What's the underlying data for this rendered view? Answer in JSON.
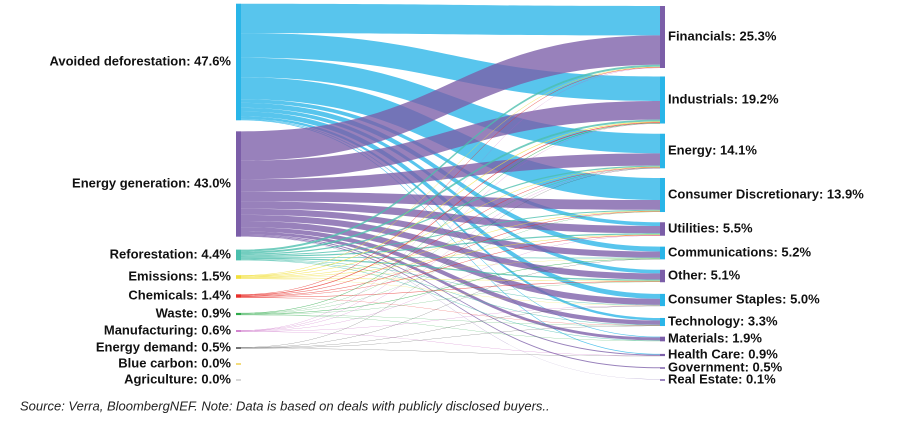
{
  "chart_data": {
    "type": "sankey",
    "sources": [
      {
        "label": "Avoided deforestation: 47.6%",
        "value": 47.6,
        "color": "#29b5e8"
      },
      {
        "label": "Energy generation: 43.0%",
        "value": 43.0,
        "color": "#7b5ea8"
      },
      {
        "label": "Reforestation: 4.4%",
        "value": 4.4,
        "color": "#4bbfad"
      },
      {
        "label": "Emissions: 1.5%",
        "value": 1.5,
        "color": "#f2e03c"
      },
      {
        "label": "Chemicals: 1.4%",
        "value": 1.4,
        "color": "#e8302a"
      },
      {
        "label": "Waste: 0.9%",
        "value": 0.9,
        "color": "#2eaa4a"
      },
      {
        "label": "Manufacturing: 0.6%",
        "value": 0.6,
        "color": "#c45bbf"
      },
      {
        "label": "Energy demand: 0.5%",
        "value": 0.5,
        "color": "#444444"
      },
      {
        "label": "Blue carbon: 0.0%",
        "value": 0.0,
        "color": "#f0d050"
      },
      {
        "label": "Agriculture: 0.0%",
        "value": 0.0,
        "color": "#cccccc"
      }
    ],
    "targets": [
      {
        "label": "Financials: 25.3%",
        "value": 25.3,
        "color": "#7b5ea8"
      },
      {
        "label": "Industrials: 19.2%",
        "value": 19.2,
        "color": "#29b5e8"
      },
      {
        "label": "Energy: 14.1%",
        "value": 14.1,
        "color": "#29b5e8"
      },
      {
        "label": "Consumer Discretionary: 13.9%",
        "value": 13.9,
        "color": "#29b5e8"
      },
      {
        "label": "Utilities: 5.5%",
        "value": 5.5,
        "color": "#7b5ea8"
      },
      {
        "label": "Communications: 5.2%",
        "value": 5.2,
        "color": "#29b5e8"
      },
      {
        "label": "Other: 5.1%",
        "value": 5.1,
        "color": "#7b5ea8"
      },
      {
        "label": "Consumer Staples: 5.0%",
        "value": 5.0,
        "color": "#29b5e8"
      },
      {
        "label": "Technology: 3.3%",
        "value": 3.3,
        "color": "#29b5e8"
      },
      {
        "label": "Materials: 1.9%",
        "value": 1.9,
        "color": "#7b5ea8"
      },
      {
        "label": "Health Care: 0.9%",
        "value": 0.9,
        "color": "#7b5ea8"
      },
      {
        "label": "Government: 0.5%",
        "value": 0.5,
        "color": "#7b5ea8"
      },
      {
        "label": "Real Estate: 0.1%",
        "value": 0.1,
        "color": "#7b5ea8"
      }
    ],
    "links": [
      {
        "source": 0,
        "target": 0,
        "value": 12
      },
      {
        "source": 0,
        "target": 1,
        "value": 10
      },
      {
        "source": 0,
        "target": 2,
        "value": 8
      },
      {
        "source": 0,
        "target": 3,
        "value": 9
      },
      {
        "source": 0,
        "target": 4,
        "value": 1.5
      },
      {
        "source": 0,
        "target": 5,
        "value": 2
      },
      {
        "source": 0,
        "target": 6,
        "value": 1.5
      },
      {
        "source": 0,
        "target": 7,
        "value": 2
      },
      {
        "source": 0,
        "target": 8,
        "value": 1
      },
      {
        "source": 0,
        "target": 9,
        "value": 0.3
      },
      {
        "source": 0,
        "target": 10,
        "value": 0.3
      },
      {
        "source": 1,
        "target": 0,
        "value": 12
      },
      {
        "source": 1,
        "target": 1,
        "value": 7.6
      },
      {
        "source": 1,
        "target": 2,
        "value": 5
      },
      {
        "source": 1,
        "target": 3,
        "value": 4
      },
      {
        "source": 1,
        "target": 4,
        "value": 3
      },
      {
        "source": 1,
        "target": 5,
        "value": 2.5
      },
      {
        "source": 1,
        "target": 6,
        "value": 2.5
      },
      {
        "source": 1,
        "target": 7,
        "value": 2.5
      },
      {
        "source": 1,
        "target": 8,
        "value": 1.8
      },
      {
        "source": 1,
        "target": 9,
        "value": 1.2
      },
      {
        "source": 1,
        "target": 10,
        "value": 0.4
      },
      {
        "source": 1,
        "target": 11,
        "value": 0.4
      },
      {
        "source": 1,
        "target": 12,
        "value": 0.1
      },
      {
        "source": 2,
        "target": 0,
        "value": 0.8
      },
      {
        "source": 2,
        "target": 1,
        "value": 0.8
      },
      {
        "source": 2,
        "target": 2,
        "value": 0.5
      },
      {
        "source": 2,
        "target": 3,
        "value": 0.4
      },
      {
        "source": 2,
        "target": 4,
        "value": 0.5
      },
      {
        "source": 2,
        "target": 5,
        "value": 0.3
      },
      {
        "source": 2,
        "target": 6,
        "value": 0.5
      },
      {
        "source": 2,
        "target": 7,
        "value": 0.2
      },
      {
        "source": 2,
        "target": 8,
        "value": 0.2
      },
      {
        "source": 2,
        "target": 9,
        "value": 0.2
      },
      {
        "source": 3,
        "target": 0,
        "value": 0.2
      },
      {
        "source": 3,
        "target": 1,
        "value": 0.3
      },
      {
        "source": 3,
        "target": 2,
        "value": 0.2
      },
      {
        "source": 3,
        "target": 3,
        "value": 0.2
      },
      {
        "source": 3,
        "target": 4,
        "value": 0.2
      },
      {
        "source": 3,
        "target": 5,
        "value": 0.1
      },
      {
        "source": 3,
        "target": 6,
        "value": 0.2
      },
      {
        "source": 3,
        "target": 7,
        "value": 0.1
      },
      {
        "source": 4,
        "target": 0,
        "value": 0.2
      },
      {
        "source": 4,
        "target": 1,
        "value": 0.3
      },
      {
        "source": 4,
        "target": 2,
        "value": 0.2
      },
      {
        "source": 4,
        "target": 3,
        "value": 0.2
      },
      {
        "source": 4,
        "target": 4,
        "value": 0.2
      },
      {
        "source": 4,
        "target": 6,
        "value": 0.2
      },
      {
        "source": 4,
        "target": 8,
        "value": 0.1
      },
      {
        "source": 5,
        "target": 1,
        "value": 0.2
      },
      {
        "source": 5,
        "target": 2,
        "value": 0.1
      },
      {
        "source": 5,
        "target": 3,
        "value": 0.1
      },
      {
        "source": 5,
        "target": 5,
        "value": 0.2
      },
      {
        "source": 5,
        "target": 6,
        "value": 0.1
      },
      {
        "source": 5,
        "target": 8,
        "value": 0.1
      },
      {
        "source": 5,
        "target": 9,
        "value": 0.1
      },
      {
        "source": 6,
        "target": 0,
        "value": 0.1
      },
      {
        "source": 6,
        "target": 1,
        "value": 0.1
      },
      {
        "source": 6,
        "target": 2,
        "value": 0.1
      },
      {
        "source": 6,
        "target": 4,
        "value": 0.1
      },
      {
        "source": 6,
        "target": 7,
        "value": 0.1
      },
      {
        "source": 6,
        "target": 10,
        "value": 0.1
      },
      {
        "source": 7,
        "target": 2,
        "value": 0.1
      },
      {
        "source": 7,
        "target": 5,
        "value": 0.1
      },
      {
        "source": 7,
        "target": 7,
        "value": 0.1
      },
      {
        "source": 7,
        "target": 8,
        "value": 0.1
      },
      {
        "source": 7,
        "target": 10,
        "value": 0.1
      }
    ],
    "note": "Source: Verra, BloombergNEF. Note: Data is based on deals with publicly disclosed buyers.."
  }
}
